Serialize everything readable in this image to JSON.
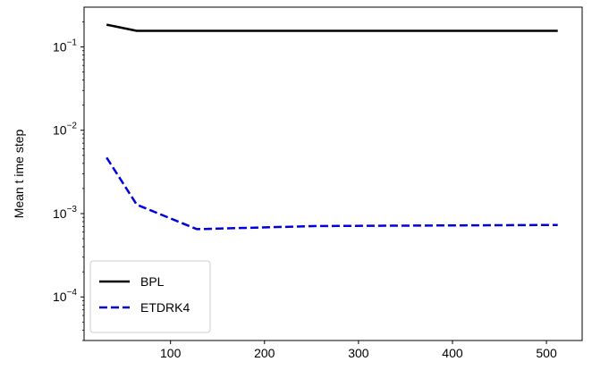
{
  "chart_data": {
    "type": "line",
    "xlabel": "",
    "ylabel": "Mean t ime step",
    "xlim": [
      8,
      538
    ],
    "ylim": [
      3e-05,
      0.3
    ],
    "yscale": "log",
    "grid": false,
    "legend_position": "bottom-left",
    "x_ticks": [
      {
        "value": 100,
        "label": "100"
      },
      {
        "value": 200,
        "label": "200"
      },
      {
        "value": 300,
        "label": "300"
      },
      {
        "value": 400,
        "label": "400"
      },
      {
        "value": 500,
        "label": "500"
      }
    ],
    "y_ticks": [
      {
        "value": 0.1,
        "base": "10",
        "exp": "−1"
      },
      {
        "value": 0.01,
        "base": "10",
        "exp": "−2"
      },
      {
        "value": 0.001,
        "base": "10",
        "exp": "−3"
      },
      {
        "value": 0.0001,
        "base": "10",
        "exp": "−4"
      }
    ],
    "series": [
      {
        "name": "BPL",
        "color": "#000000",
        "style": "solid",
        "x": [
          32,
          64,
          128,
          256,
          512
        ],
        "y": [
          0.185,
          0.156,
          0.156,
          0.156,
          0.156
        ]
      },
      {
        "name": "ETDRK4",
        "color": "#0000dd",
        "style": "dashed",
        "x": [
          32,
          64,
          128,
          256,
          512
        ],
        "y": [
          0.0047,
          0.00128,
          0.00065,
          0.00071,
          0.00073
        ]
      }
    ]
  }
}
